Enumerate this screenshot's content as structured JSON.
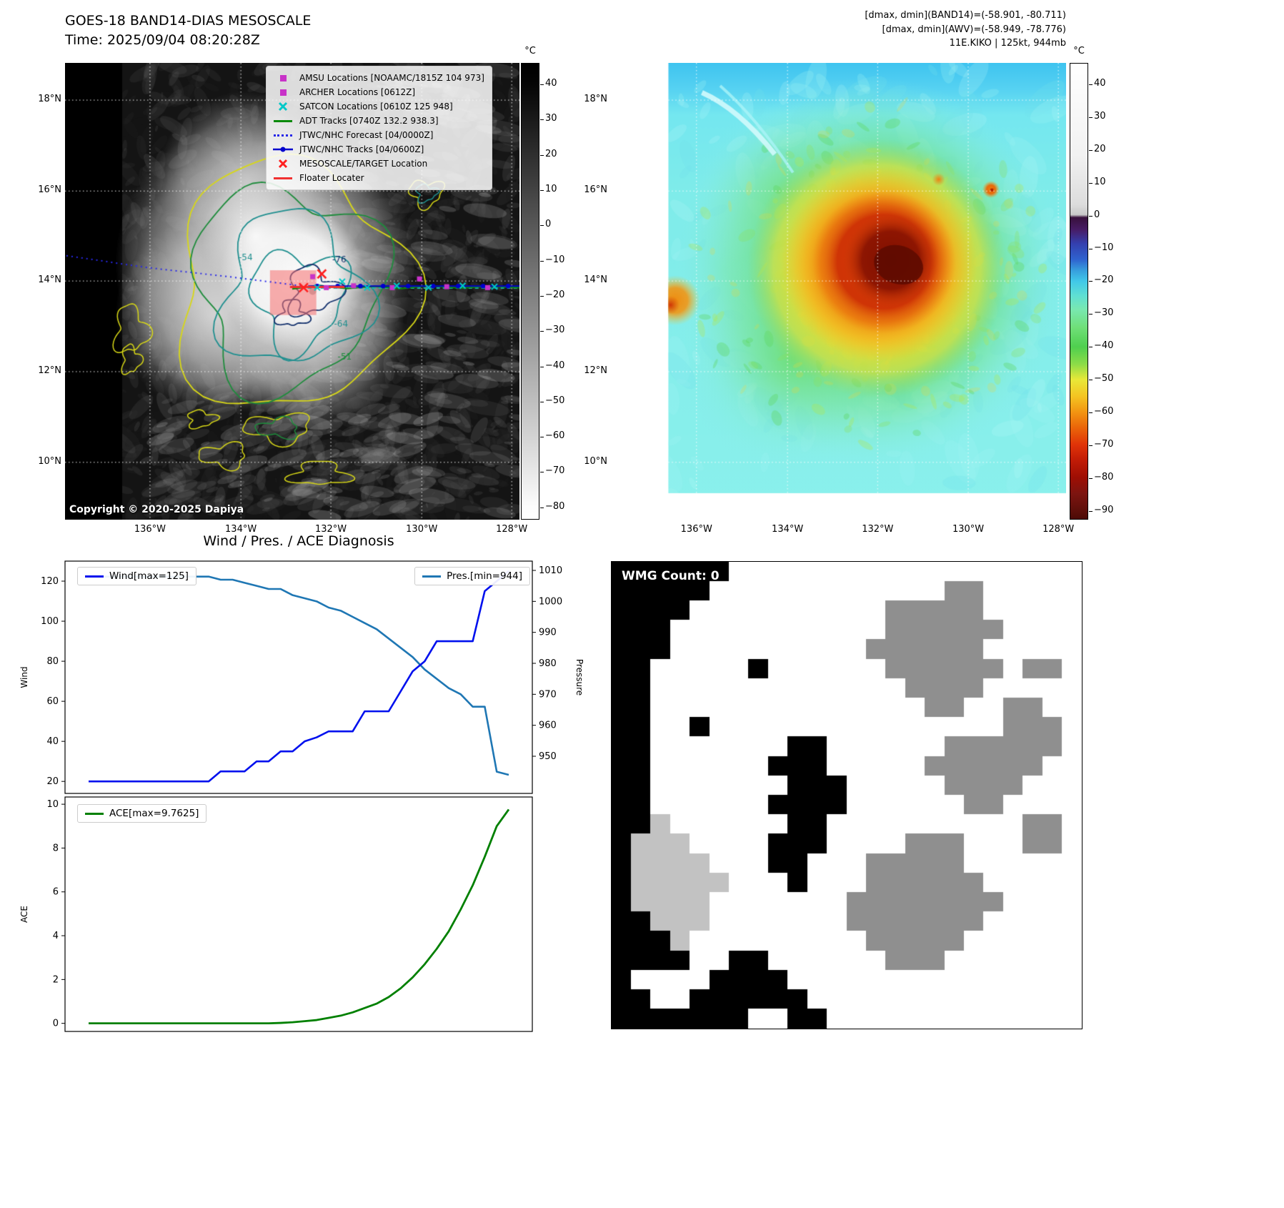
{
  "panel_tl": {
    "title": "GOES-18 BAND14-DIAS MESOSCALE",
    "subtitle": "Time: 2025/09/04 08:20:28Z",
    "copyright": "Copyright © 2020-2025 Dapiya",
    "colorbar": {
      "unit": "°C",
      "ticks": [
        40,
        30,
        20,
        10,
        0,
        -10,
        -20,
        -30,
        -40,
        -50,
        -60,
        -70,
        -80
      ]
    },
    "lat_ticks": [
      "18°N",
      "16°N",
      "14°N",
      "12°N",
      "10°N"
    ],
    "lon_ticks": [
      "136°W",
      "134°W",
      "132°W",
      "130°W",
      "128°W"
    ],
    "contour_labels": [
      "-54",
      "-76",
      "-64",
      "-51"
    ],
    "legend": [
      {
        "icon": "amsu-square-icon",
        "marker": "square",
        "color": "#c832c8",
        "label": "AMSU Locations [NOAAMC/1815Z 104 973]"
      },
      {
        "icon": "archer-square-icon",
        "marker": "square",
        "color": "#c832c8",
        "label": "ARCHER Locations [0612Z]"
      },
      {
        "icon": "satcon-x-icon",
        "marker": "x",
        "color": "#00c8c8",
        "label": "SATCON Locations [0610Z 125 948]"
      },
      {
        "icon": "adt-track-line-icon",
        "marker": "line",
        "color": "#0a8a0a",
        "label": "ADT Tracks [0740Z 132.2 938.3]"
      },
      {
        "icon": "jtwc-forecast-dotted-line-icon",
        "marker": "dotted",
        "color": "#2828e8",
        "label": "JTWC/NHC Forecast [04/0000Z]"
      },
      {
        "icon": "jtwc-track-line-icon",
        "marker": "line-dot",
        "color": "#0000cd",
        "label": "JTWC/NHC Tracks [04/0600Z]"
      },
      {
        "icon": "mesoscale-target-x-icon",
        "marker": "x",
        "color": "#ff2020",
        "label": "MESOSCALE/TARGET Location"
      },
      {
        "icon": "floater-locater-line-icon",
        "marker": "line",
        "color": "#f03030",
        "label": "Floater Locater"
      }
    ]
  },
  "panel_tr": {
    "header_lines": [
      "[dmax, dmin](BAND14)=(-58.901, -80.711)",
      "[dmax, dmin](AWV)=(-58.949, -78.776)",
      "11E.KIKO | 125kt, 944mb"
    ],
    "colorbar": {
      "unit": "°C",
      "ticks": [
        40,
        30,
        20,
        10,
        0,
        -10,
        -20,
        -30,
        -40,
        -50,
        -60,
        -70,
        -80,
        -90
      ]
    },
    "lat_ticks": [
      "18°N",
      "16°N",
      "14°N",
      "12°N",
      "10°N"
    ],
    "lon_ticks": [
      "136°W",
      "134°W",
      "132°W",
      "130°W",
      "128°W"
    ]
  },
  "chart_data": [
    {
      "type": "line",
      "title": "Wind / Pres. / ACE Diagnosis",
      "x": [
        0,
        1,
        2,
        3,
        4,
        5,
        6,
        7,
        8,
        9,
        10,
        11,
        12,
        13,
        14,
        15,
        16,
        17,
        18,
        19,
        20,
        21,
        22,
        23,
        24,
        25,
        26,
        27,
        28,
        29,
        30,
        31,
        32,
        33,
        34,
        35
      ],
      "series": [
        {
          "name": "Wind[max=125]",
          "yaxis": "left",
          "color": "#0010ee",
          "values": [
            20,
            20,
            20,
            20,
            20,
            20,
            20,
            20,
            20,
            20,
            20,
            25,
            25,
            25,
            30,
            30,
            35,
            35,
            40,
            42,
            45,
            45,
            45,
            55,
            55,
            55,
            65,
            75,
            80,
            90,
            90,
            90,
            90,
            115,
            120,
            125
          ]
        },
        {
          "name": "Pres.[min=944]",
          "yaxis": "right",
          "color": "#1f77b4",
          "values": [
            1008,
            1008,
            1008,
            1008,
            1008,
            1008,
            1008,
            1008,
            1008,
            1008,
            1008,
            1007,
            1007,
            1006,
            1005,
            1004,
            1004,
            1002,
            1001,
            1000,
            998,
            997,
            995,
            993,
            991,
            988,
            985,
            982,
            978,
            975,
            972,
            970,
            966,
            966,
            945,
            944
          ]
        }
      ],
      "left_axis": {
        "label": "Wind",
        "ticks": [
          20,
          40,
          60,
          80,
          100,
          120
        ],
        "range": [
          14,
          130
        ]
      },
      "right_axis": {
        "label": "Pressure",
        "ticks": [
          950,
          960,
          970,
          980,
          990,
          1000,
          1010
        ],
        "range": [
          938,
          1013
        ]
      },
      "legend_positions": [
        "top-left",
        "top-right"
      ],
      "grid": false
    },
    {
      "type": "line",
      "x": [
        0,
        1,
        2,
        3,
        4,
        5,
        6,
        7,
        8,
        9,
        10,
        11,
        12,
        13,
        14,
        15,
        16,
        17,
        18,
        19,
        20,
        21,
        22,
        23,
        24,
        25,
        26,
        27,
        28,
        29,
        30,
        31,
        32,
        33,
        34,
        35
      ],
      "series": [
        {
          "name": "ACE[max=9.7625]",
          "yaxis": "left",
          "color": "#008000",
          "values": [
            0,
            0,
            0,
            0,
            0,
            0,
            0,
            0,
            0,
            0,
            0,
            0,
            0,
            0,
            0,
            0,
            0.02,
            0.05,
            0.1,
            0.15,
            0.25,
            0.35,
            0.5,
            0.7,
            0.9,
            1.2,
            1.6,
            2.1,
            2.7,
            3.4,
            4.2,
            5.2,
            6.3,
            7.6,
            9.0,
            9.7625
          ]
        }
      ],
      "left_axis": {
        "label": "ACE",
        "ticks": [
          0,
          2,
          4,
          6,
          8,
          10
        ],
        "range": [
          -0.37,
          10.33
        ]
      },
      "legend_positions": [
        "top-left"
      ],
      "grid": false
    }
  ],
  "panel_br": {
    "label": "WMG Count: 0",
    "palette": {
      "K": "#000000",
      "W": "#ffffff",
      "G": "#8f8f8f",
      "L": "#c2c2c2"
    },
    "grid": [
      "KKKKKKWWWWWWWWWWWWWWWWWW",
      "KKKKKWWWWWWWWWWWWGGWWWWW",
      "KKKKWWWWWWWWWWGGGGGWWWWW",
      "KKKWWWWWWWWWWWGGGGGGWWWW",
      "KKKWWWWWWWWWWGGGGGGWWWWW",
      "KKWWWWWKWWWWWWGGGGGGWGGW",
      "KKWWWWWWWWWWWWWGGGGWWWWW",
      "KKWWWWWWWWWWWWWWGGWWGGWW",
      "KKWWKWWWWWWWWWWWWWWWGGGW",
      "KKWWWWWWWKKWWWWWWGGGGGGW",
      "KKWWWWWWKKKWWWWWGGGGGGWW",
      "KKWWWWWWWKKKWWWWWGGGGWWW",
      "KKWWWWWWKKKKWWWWWWGGWWWW",
      "KKLWWWWWWKKWWWWWWWWWWGGW",
      "KLLLWWWWKKKWWWWGGGWWWGGW",
      "KLLLLWWWKKWWWGGGGGWWWWWW",
      "KLLLLLWWWKWWWGGGGGGWWWWW",
      "KLLLLWWWWWWWGGGGGGGGWWWW",
      "KKLLLWWWWWWWGGGGGGGWWWWW",
      "KKKLWWWWWWWWWGGGGGWWWWWW",
      "KKKKWWKKWWWWWWGGGWWWWWWW",
      "KWWWWKKKKWWWWWWWWWWWWWWW",
      "KKWWKKKKKKWWWWWWWWWWWWWW",
      "KKKKKKKWWKKWWWWWWWWWWWWW"
    ]
  }
}
